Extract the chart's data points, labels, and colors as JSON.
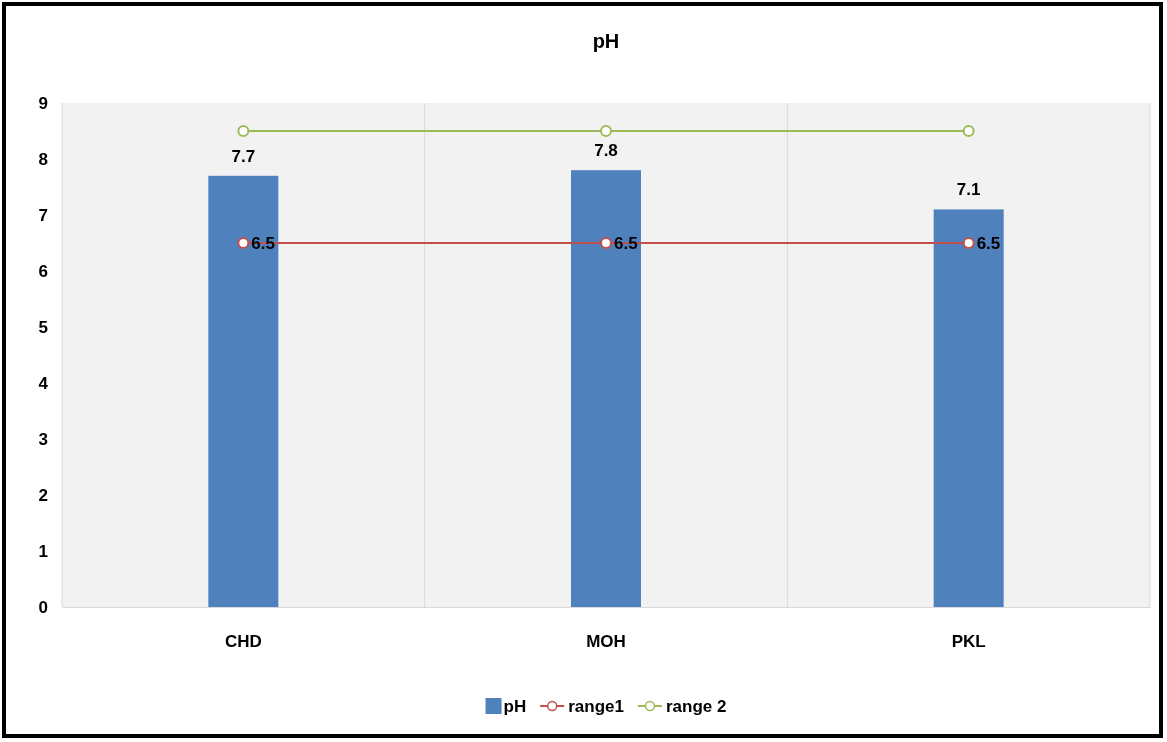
{
  "chart_data": {
    "type": "bar",
    "title": "pH",
    "categories": [
      "CHD",
      "MOH",
      "PKL"
    ],
    "series": [
      {
        "name": "pH",
        "color": "#4f81bd",
        "values": [
          7.7,
          7.8,
          7.1
        ],
        "value_labels": [
          "7.7",
          "7.8",
          "7.1"
        ]
      },
      {
        "name": "range1",
        "type": "line",
        "color": "#c0504d",
        "values": [
          6.5,
          6.5,
          6.5
        ],
        "value_labels": [
          "6.5",
          "6.5",
          "6.5"
        ]
      },
      {
        "name": "range 2",
        "type": "line",
        "color": "#9bbb59",
        "values": [
          8.5,
          8.5,
          8.5
        ]
      }
    ],
    "ylim": [
      0,
      9
    ],
    "yticks": [
      0,
      1,
      2,
      3,
      4,
      5,
      6,
      7,
      8,
      9
    ],
    "grid": "x",
    "legend": "bottom",
    "marker": "circle"
  }
}
